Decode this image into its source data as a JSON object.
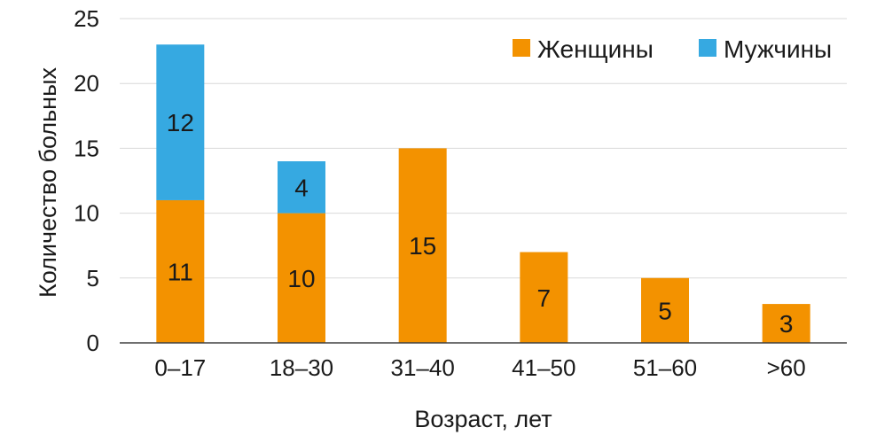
{
  "chart_data": {
    "type": "bar",
    "stacked": true,
    "title": "",
    "xlabel": "Возраст, лет",
    "ylabel": "Количество больных",
    "categories": [
      "0–17",
      "18–30",
      "31–40",
      "41–50",
      "51–60",
      ">60"
    ],
    "series": [
      {
        "name": "Женщины",
        "color": "#f39200",
        "values": [
          11,
          10,
          15,
          7,
          5,
          3
        ]
      },
      {
        "name": "Мужчины",
        "color": "#36a9e1",
        "values": [
          12,
          4,
          0,
          0,
          0,
          0
        ]
      }
    ],
    "ylim": [
      0,
      25
    ],
    "yticks": [
      0,
      5,
      10,
      15,
      20,
      25
    ],
    "grid": true,
    "legend_position": "top-right"
  }
}
